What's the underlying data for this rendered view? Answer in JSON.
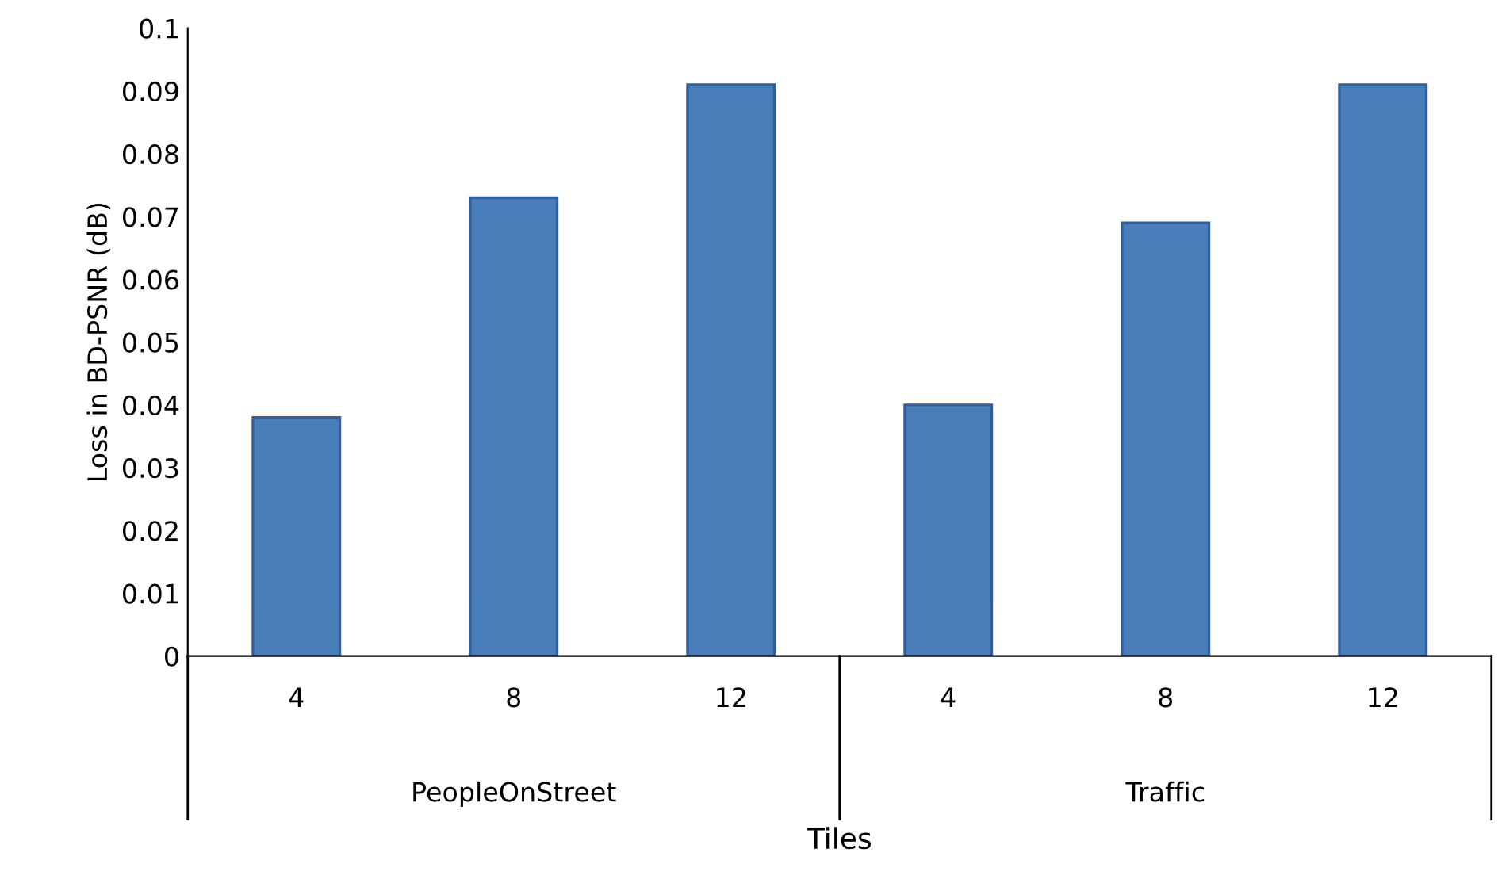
{
  "chart_data": {
    "type": "bar",
    "xlabel": "Tiles",
    "ylabel": "Loss in BD-PSNR (dB)",
    "categories": [
      "4",
      "8",
      "12",
      "4",
      "8",
      "12"
    ],
    "values": [
      0.038,
      0.073,
      0.091,
      0.04,
      0.069,
      0.091
    ],
    "color": "#4a7ebb",
    "ylim": [
      0,
      0.1
    ],
    "yticks": [
      0,
      0.01,
      0.02,
      0.03,
      0.04,
      0.05,
      0.06,
      0.07,
      0.08,
      0.09,
      0.1
    ],
    "annotations": [
      "PeopleOnStreet",
      "Traffic"
    ],
    "grid": false,
    "legend": false
  }
}
